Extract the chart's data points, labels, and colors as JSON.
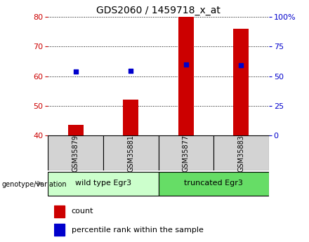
{
  "title": "GDS2060 / 1459718_x_at",
  "samples": [
    "GSM35879",
    "GSM35881",
    "GSM35877",
    "GSM35883"
  ],
  "bar_values": [
    43.5,
    52.0,
    80.0,
    76.0
  ],
  "percentile_values": [
    54.0,
    54.5,
    60.0,
    59.0
  ],
  "ylim_left": [
    40,
    80
  ],
  "ylim_right": [
    0,
    100
  ],
  "bar_color": "#cc0000",
  "dot_color": "#0000cc",
  "yticks_left": [
    40,
    50,
    60,
    70,
    80
  ],
  "yticks_right": [
    0,
    25,
    50,
    75,
    100
  ],
  "ytick_labels_right": [
    "0",
    "25",
    "50",
    "75",
    "100%"
  ],
  "groups": [
    {
      "label": "wild type Egr3",
      "indices": [
        0,
        1
      ],
      "color": "#ccffcc"
    },
    {
      "label": "truncated Egr3",
      "indices": [
        2,
        3
      ],
      "color": "#66dd66"
    }
  ],
  "legend_count_label": "count",
  "legend_percentile_label": "percentile rank within the sample",
  "genotype_label": "genotype/variation",
  "title_fontsize": 10,
  "tick_fontsize": 8,
  "bar_width": 0.28,
  "sample_box_color": "#d3d3d3",
  "grid_color": "black",
  "grid_linestyle": ":",
  "grid_linewidth": 0.7
}
